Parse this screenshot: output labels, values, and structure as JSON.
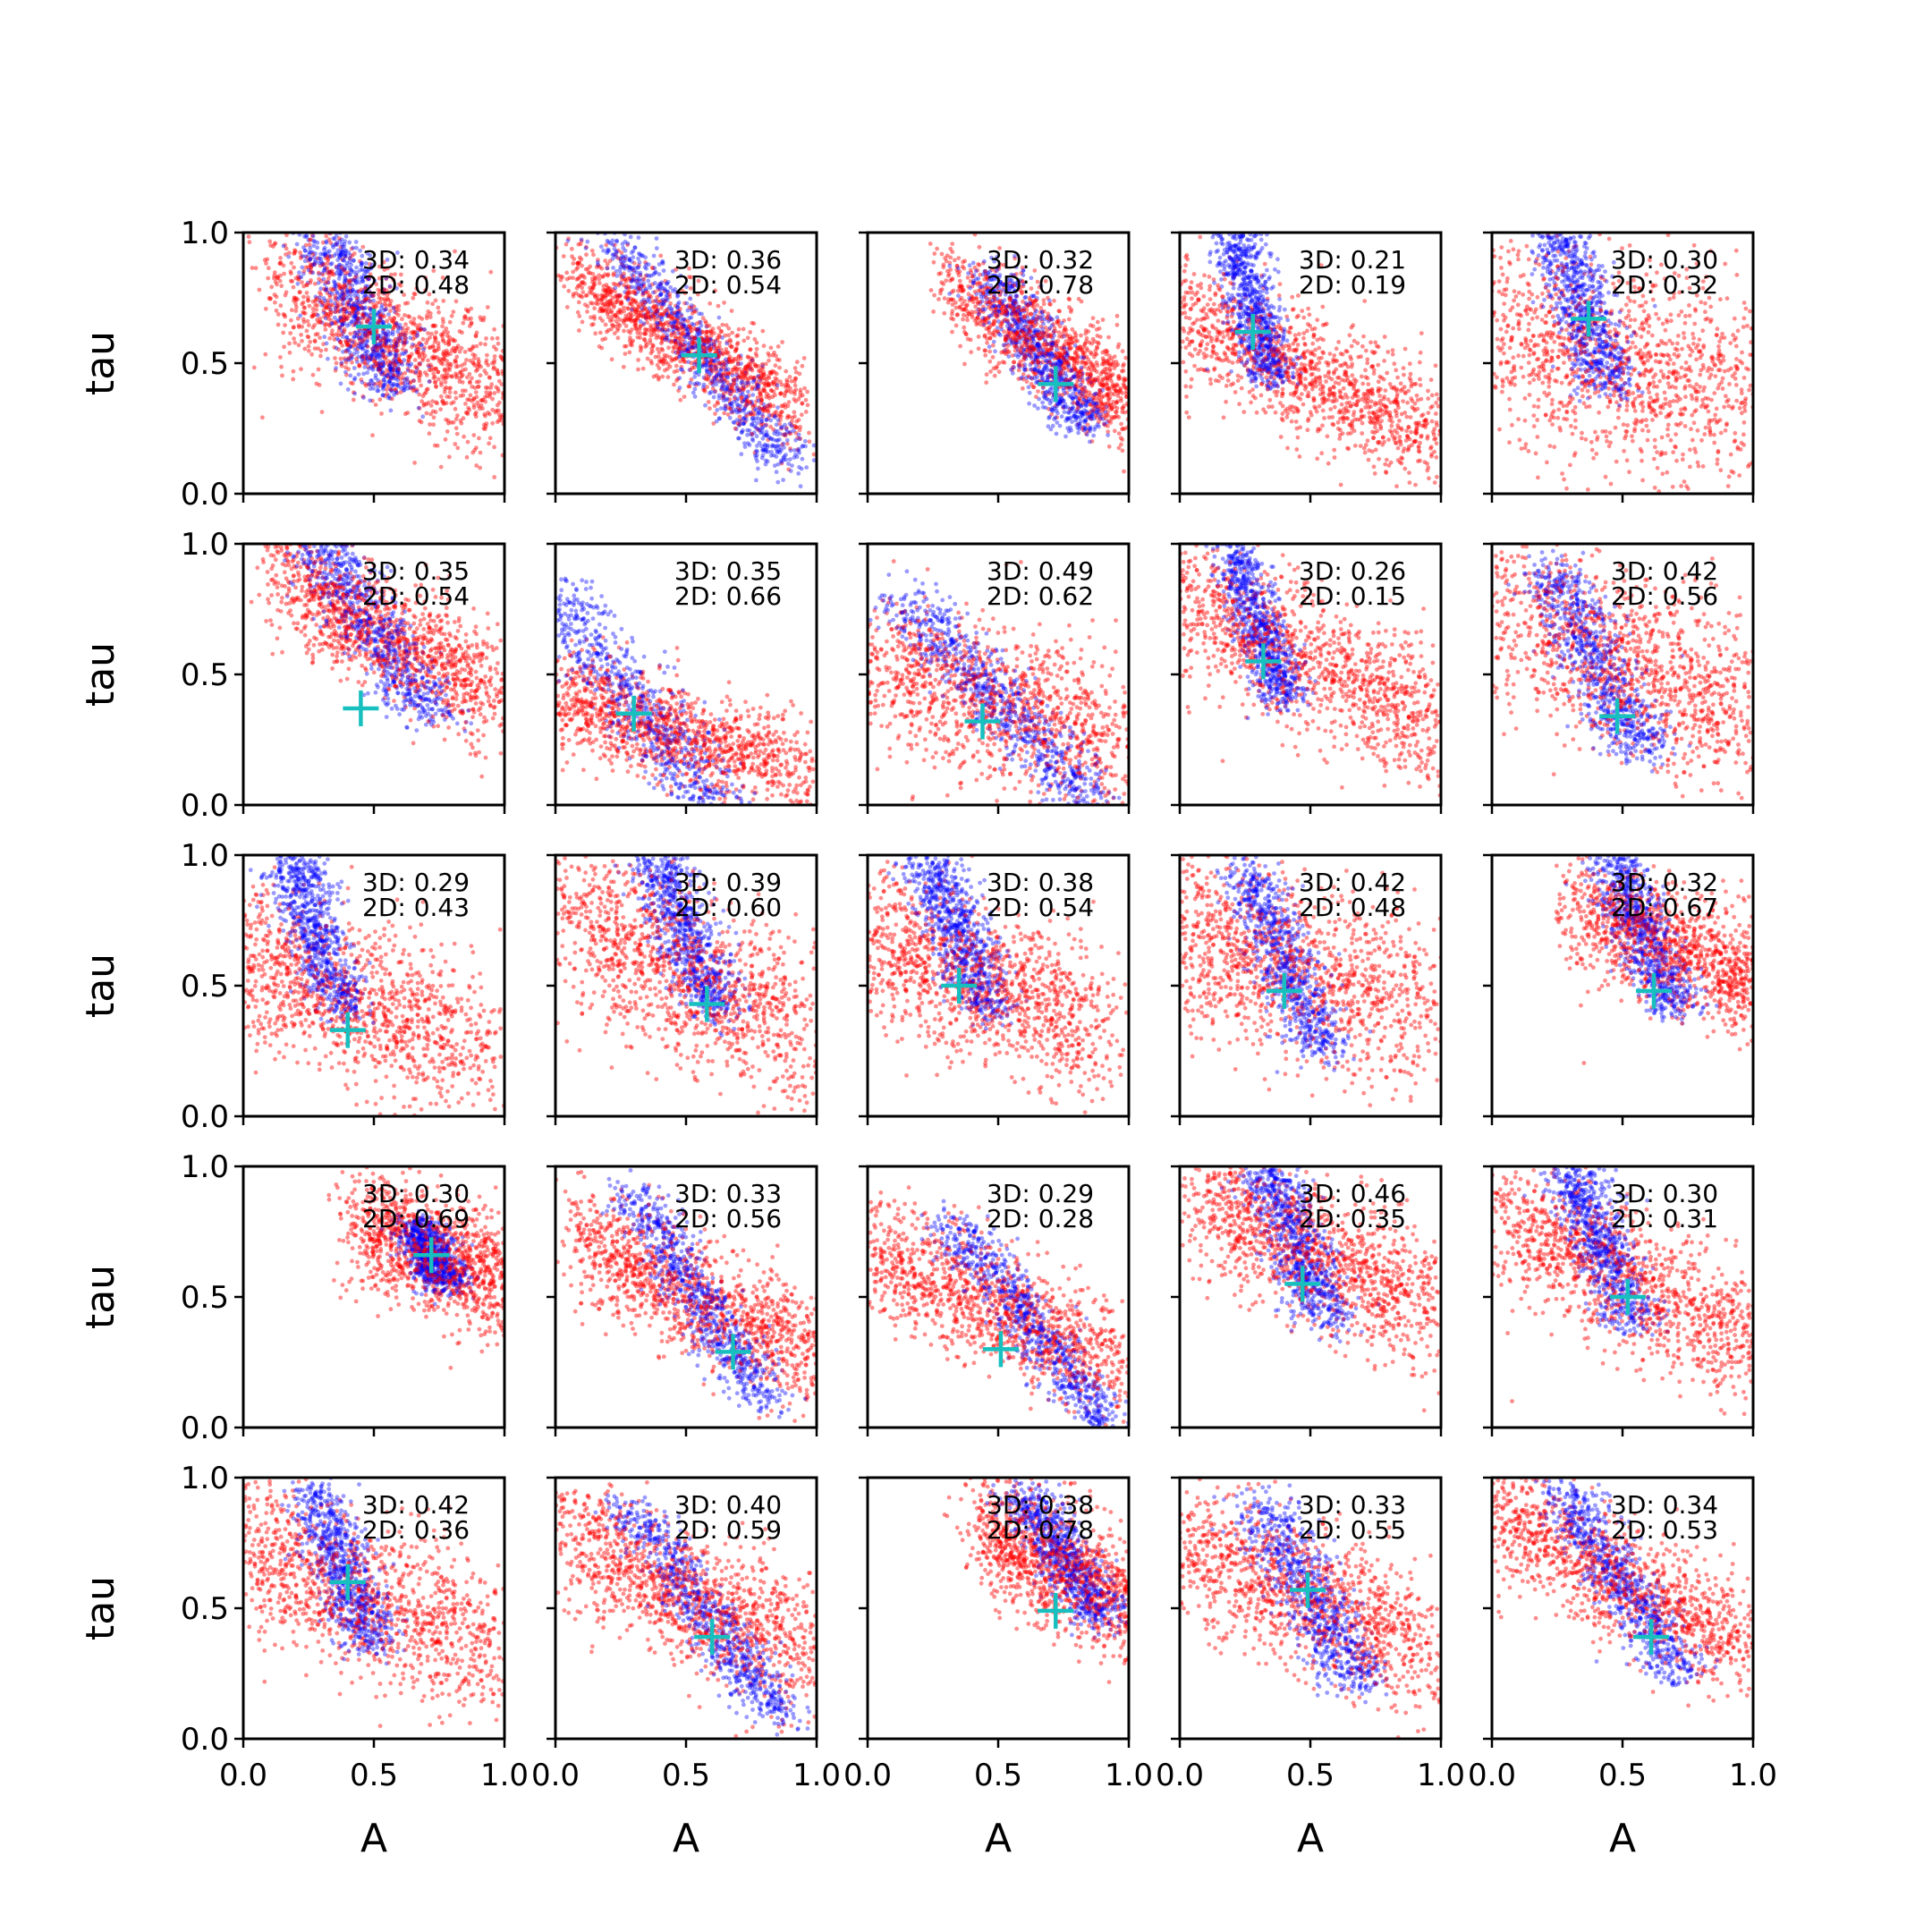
{
  "chart_data": {
    "type": "scatter",
    "grid": {
      "rows": 5,
      "cols": 5
    },
    "xlabel": "A",
    "ylabel": "tau",
    "xlim": [
      0.0,
      1.0
    ],
    "ylim": [
      0.0,
      1.0
    ],
    "xticks": [
      "0.0",
      "0.5",
      "1.0"
    ],
    "yticks": [
      "0.0",
      "0.5",
      "1.0"
    ],
    "series_colors": {
      "posterior_3d": "#0000ff",
      "posterior_2d": "#ff0000",
      "truth_marker": "#17bfbf"
    },
    "grid_lines": false,
    "panels": [
      {
        "label_3d": "3D: 0.34",
        "label_2d": "2D: 0.48",
        "marker": [
          0.5,
          0.64
        ],
        "blue": {
          "cx": 0.45,
          "cy": 0.68,
          "spread": 0.28,
          "slope": -2.2,
          "width": 0.07
        },
        "red": {
          "cx": 0.55,
          "cy": 0.6,
          "spread": 0.45,
          "slope": -1.0,
          "width": 0.14
        }
      },
      {
        "label_3d": "3D: 0.36",
        "label_2d": "2D: 0.54",
        "marker": [
          0.55,
          0.53
        ],
        "blue": {
          "cx": 0.55,
          "cy": 0.55,
          "spread": 0.45,
          "slope": -1.3,
          "width": 0.06
        },
        "red": {
          "cx": 0.5,
          "cy": 0.58,
          "spread": 0.45,
          "slope": -1.2,
          "width": 0.09
        }
      },
      {
        "label_3d": "3D: 0.32",
        "label_2d": "2D: 0.78",
        "marker": [
          0.72,
          0.42
        ],
        "blue": {
          "cx": 0.65,
          "cy": 0.55,
          "spread": 0.3,
          "slope": -1.6,
          "width": 0.06
        },
        "red": {
          "cx": 0.7,
          "cy": 0.55,
          "spread": 0.4,
          "slope": -1.3,
          "width": 0.1
        }
      },
      {
        "label_3d": "3D: 0.21",
        "label_2d": "2D: 0.19",
        "marker": [
          0.28,
          0.62
        ],
        "blue": {
          "cx": 0.28,
          "cy": 0.72,
          "spread": 0.28,
          "slope": -3.5,
          "width": 0.05
        },
        "red": {
          "cx": 0.5,
          "cy": 0.45,
          "spread": 0.55,
          "slope": -0.9,
          "width": 0.12
        }
      },
      {
        "label_3d": "3D: 0.30",
        "label_2d": "2D: 0.32",
        "marker": [
          0.37,
          0.67
        ],
        "blue": {
          "cx": 0.35,
          "cy": 0.7,
          "spread": 0.3,
          "slope": -3.0,
          "width": 0.06
        },
        "red": {
          "cx": 0.5,
          "cy": 0.5,
          "spread": 0.55,
          "slope": -0.5,
          "width": 0.22
        }
      },
      {
        "label_3d": "3D: 0.35",
        "label_2d": "2D: 0.54",
        "marker": [
          0.45,
          0.37
        ],
        "blue": {
          "cx": 0.5,
          "cy": 0.68,
          "spread": 0.35,
          "slope": -1.5,
          "width": 0.07
        },
        "red": {
          "cx": 0.55,
          "cy": 0.65,
          "spread": 0.45,
          "slope": -1.1,
          "width": 0.12
        }
      },
      {
        "label_3d": "3D: 0.35",
        "label_2d": "2D: 0.66",
        "marker": [
          0.3,
          0.35
        ],
        "blue": {
          "cx": 0.3,
          "cy": 0.4,
          "spread": 0.45,
          "slope": -1.3,
          "width": 0.08
        },
        "red": {
          "cx": 0.45,
          "cy": 0.28,
          "spread": 0.55,
          "slope": -0.6,
          "width": 0.1
        }
      },
      {
        "label_3d": "3D: 0.49",
        "label_2d": "2D: 0.62",
        "marker": [
          0.44,
          0.32
        ],
        "blue": {
          "cx": 0.5,
          "cy": 0.4,
          "spread": 0.4,
          "slope": -1.1,
          "width": 0.07
        },
        "red": {
          "cx": 0.5,
          "cy": 0.38,
          "spread": 0.55,
          "slope": -0.7,
          "width": 0.16
        }
      },
      {
        "label_3d": "3D: 0.26",
        "label_2d": "2D: 0.15",
        "marker": [
          0.32,
          0.55
        ],
        "blue": {
          "cx": 0.3,
          "cy": 0.7,
          "spread": 0.3,
          "slope": -3.0,
          "width": 0.05
        },
        "red": {
          "cx": 0.5,
          "cy": 0.55,
          "spread": 0.55,
          "slope": -1.0,
          "width": 0.14
        }
      },
      {
        "label_3d": "3D: 0.42",
        "label_2d": "2D: 0.56",
        "marker": [
          0.48,
          0.34
        ],
        "blue": {
          "cx": 0.4,
          "cy": 0.55,
          "spread": 0.35,
          "slope": -2.0,
          "width": 0.07
        },
        "red": {
          "cx": 0.5,
          "cy": 0.55,
          "spread": 0.55,
          "slope": -0.8,
          "width": 0.18
        }
      },
      {
        "label_3d": "3D: 0.29",
        "label_2d": "2D: 0.43",
        "marker": [
          0.4,
          0.33
        ],
        "blue": {
          "cx": 0.28,
          "cy": 0.7,
          "spread": 0.3,
          "slope": -3.0,
          "width": 0.06
        },
        "red": {
          "cx": 0.4,
          "cy": 0.45,
          "spread": 0.55,
          "slope": -0.8,
          "width": 0.16
        }
      },
      {
        "label_3d": "3D: 0.39",
        "label_2d": "2D: 0.60",
        "marker": [
          0.58,
          0.43
        ],
        "blue": {
          "cx": 0.5,
          "cy": 0.7,
          "spread": 0.3,
          "slope": -2.5,
          "width": 0.06
        },
        "red": {
          "cx": 0.5,
          "cy": 0.55,
          "spread": 0.5,
          "slope": -1.0,
          "width": 0.18
        }
      },
      {
        "label_3d": "3D: 0.38",
        "label_2d": "2D: 0.54",
        "marker": [
          0.35,
          0.5
        ],
        "blue": {
          "cx": 0.35,
          "cy": 0.7,
          "spread": 0.3,
          "slope": -2.5,
          "width": 0.06
        },
        "red": {
          "cx": 0.45,
          "cy": 0.5,
          "spread": 0.5,
          "slope": -0.8,
          "width": 0.16
        }
      },
      {
        "label_3d": "3D: 0.42",
        "label_2d": "2D: 0.48",
        "marker": [
          0.4,
          0.48
        ],
        "blue": {
          "cx": 0.4,
          "cy": 0.6,
          "spread": 0.35,
          "slope": -2.5,
          "width": 0.06
        },
        "red": {
          "cx": 0.45,
          "cy": 0.55,
          "spread": 0.55,
          "slope": -0.6,
          "width": 0.18
        }
      },
      {
        "label_3d": "3D: 0.32",
        "label_2d": "2D: 0.67",
        "marker": [
          0.62,
          0.48
        ],
        "blue": {
          "cx": 0.58,
          "cy": 0.7,
          "spread": 0.3,
          "slope": -2.5,
          "width": 0.06
        },
        "red": {
          "cx": 0.7,
          "cy": 0.65,
          "spread": 0.4,
          "slope": -0.8,
          "width": 0.12
        }
      },
      {
        "label_3d": "3D: 0.30",
        "label_2d": "2D: 0.69",
        "marker": [
          0.72,
          0.66
        ],
        "blue": {
          "cx": 0.72,
          "cy": 0.66,
          "spread": 0.12,
          "slope": -2.0,
          "width": 0.05
        },
        "red": {
          "cx": 0.75,
          "cy": 0.65,
          "spread": 0.35,
          "slope": -0.8,
          "width": 0.12
        }
      },
      {
        "label_3d": "3D: 0.33",
        "label_2d": "2D: 0.56",
        "marker": [
          0.68,
          0.29
        ],
        "blue": {
          "cx": 0.55,
          "cy": 0.5,
          "spread": 0.4,
          "slope": -1.6,
          "width": 0.06
        },
        "red": {
          "cx": 0.55,
          "cy": 0.5,
          "spread": 0.5,
          "slope": -1.0,
          "width": 0.12
        }
      },
      {
        "label_3d": "3D: 0.29",
        "label_2d": "2D: 0.28",
        "marker": [
          0.51,
          0.3
        ],
        "blue": {
          "cx": 0.62,
          "cy": 0.4,
          "spread": 0.4,
          "slope": -1.3,
          "width": 0.06
        },
        "red": {
          "cx": 0.5,
          "cy": 0.45,
          "spread": 0.55,
          "slope": -0.9,
          "width": 0.12
        }
      },
      {
        "label_3d": "3D: 0.46",
        "label_2d": "2D: 0.35",
        "marker": [
          0.47,
          0.55
        ],
        "blue": {
          "cx": 0.45,
          "cy": 0.7,
          "spread": 0.3,
          "slope": -2.5,
          "width": 0.06
        },
        "red": {
          "cx": 0.55,
          "cy": 0.65,
          "spread": 0.5,
          "slope": -0.9,
          "width": 0.14
        }
      },
      {
        "label_3d": "3D: 0.30",
        "label_2d": "2D: 0.31",
        "marker": [
          0.52,
          0.5
        ],
        "blue": {
          "cx": 0.42,
          "cy": 0.7,
          "spread": 0.3,
          "slope": -2.5,
          "width": 0.06
        },
        "red": {
          "cx": 0.55,
          "cy": 0.55,
          "spread": 0.55,
          "slope": -1.0,
          "width": 0.14
        }
      },
      {
        "label_3d": "3D: 0.42",
        "label_2d": "2D: 0.36",
        "marker": [
          0.4,
          0.6
        ],
        "blue": {
          "cx": 0.38,
          "cy": 0.65,
          "spread": 0.3,
          "slope": -2.5,
          "width": 0.06
        },
        "red": {
          "cx": 0.45,
          "cy": 0.55,
          "spread": 0.55,
          "slope": -0.8,
          "width": 0.16
        }
      },
      {
        "label_3d": "3D: 0.40",
        "label_2d": "2D: 0.59",
        "marker": [
          0.6,
          0.39
        ],
        "blue": {
          "cx": 0.58,
          "cy": 0.48,
          "spread": 0.4,
          "slope": -1.4,
          "width": 0.06
        },
        "red": {
          "cx": 0.5,
          "cy": 0.55,
          "spread": 0.5,
          "slope": -1.0,
          "width": 0.14
        }
      },
      {
        "label_3d": "3D: 0.38",
        "label_2d": "2D: 0.78",
        "marker": [
          0.72,
          0.49
        ],
        "blue": {
          "cx": 0.75,
          "cy": 0.7,
          "spread": 0.25,
          "slope": -1.6,
          "width": 0.06
        },
        "red": {
          "cx": 0.75,
          "cy": 0.65,
          "spread": 0.35,
          "slope": -1.0,
          "width": 0.12
        }
      },
      {
        "label_3d": "3D: 0.33",
        "label_2d": "2D: 0.55",
        "marker": [
          0.49,
          0.57
        ],
        "blue": {
          "cx": 0.5,
          "cy": 0.55,
          "spread": 0.35,
          "slope": -1.8,
          "width": 0.07
        },
        "red": {
          "cx": 0.45,
          "cy": 0.55,
          "spread": 0.55,
          "slope": -0.8,
          "width": 0.14
        }
      },
      {
        "label_3d": "3D: 0.34",
        "label_2d": "2D: 0.53",
        "marker": [
          0.61,
          0.39
        ],
        "blue": {
          "cx": 0.5,
          "cy": 0.6,
          "spread": 0.35,
          "slope": -1.5,
          "width": 0.06
        },
        "red": {
          "cx": 0.5,
          "cy": 0.6,
          "spread": 0.55,
          "slope": -1.0,
          "width": 0.12
        }
      }
    ]
  }
}
